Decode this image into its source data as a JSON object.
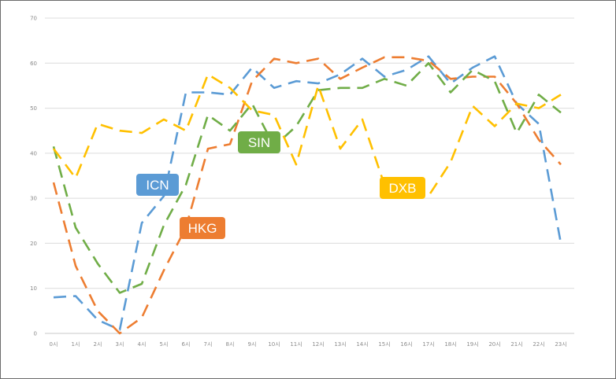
{
  "chart_data": {
    "type": "line",
    "title": "",
    "xlabel": "",
    "ylabel": "",
    "ylim": [
      0,
      70
    ],
    "yticks": [
      0,
      10,
      20,
      30,
      40,
      50,
      60,
      70
    ],
    "categories": [
      "0시",
      "1시",
      "2시",
      "3시",
      "4시",
      "5시",
      "6시",
      "7시",
      "8시",
      "9시",
      "10시",
      "11시",
      "12시",
      "13시",
      "14시",
      "15시",
      "16시",
      "17시",
      "18시",
      "19시",
      "20시",
      "21시",
      "22시",
      "23시"
    ],
    "grid": true,
    "line_style": "dashed",
    "series": [
      {
        "name": "ICN",
        "color": "#5b9bd5",
        "values": [
          8,
          8.3,
          3,
          0.8,
          24.5,
          30.5,
          53.5,
          53.5,
          53,
          59,
          54.5,
          56,
          55.5,
          57.5,
          61,
          57,
          58.5,
          61.5,
          55.5,
          59,
          61.5,
          51,
          46.5,
          20
        ]
      },
      {
        "name": "HKG",
        "color": "#ed7d31",
        "values": [
          33.5,
          15,
          5,
          0,
          3.5,
          14,
          23.5,
          41,
          42,
          56,
          61,
          60,
          61,
          56.5,
          59,
          61.3,
          61.3,
          60.5,
          56.5,
          57,
          57,
          51,
          43,
          37.5
        ]
      },
      {
        "name": "SIN",
        "color": "#70ad47",
        "values": [
          41.5,
          23.5,
          15.5,
          9,
          11,
          24,
          33,
          48.5,
          45,
          51,
          41.5,
          46,
          54,
          54.5,
          54.5,
          56.5,
          55,
          60,
          53.5,
          58.5,
          56,
          44.5,
          53,
          49
        ]
      },
      {
        "name": "DXB",
        "color": "#ffc000",
        "values": [
          41,
          34.5,
          46.5,
          45,
          44.5,
          47.5,
          45,
          57.5,
          54.5,
          49.5,
          48.5,
          37.5,
          55,
          41,
          47.5,
          33,
          32,
          30.5,
          38,
          50.5,
          46,
          51,
          50,
          53
        ]
      }
    ],
    "labels": [
      {
        "text": "ICN",
        "series": "ICN"
      },
      {
        "text": "HKG",
        "series": "HKG"
      },
      {
        "text": "SIN",
        "series": "SIN"
      },
      {
        "text": "DXB",
        "series": "DXB"
      }
    ]
  }
}
